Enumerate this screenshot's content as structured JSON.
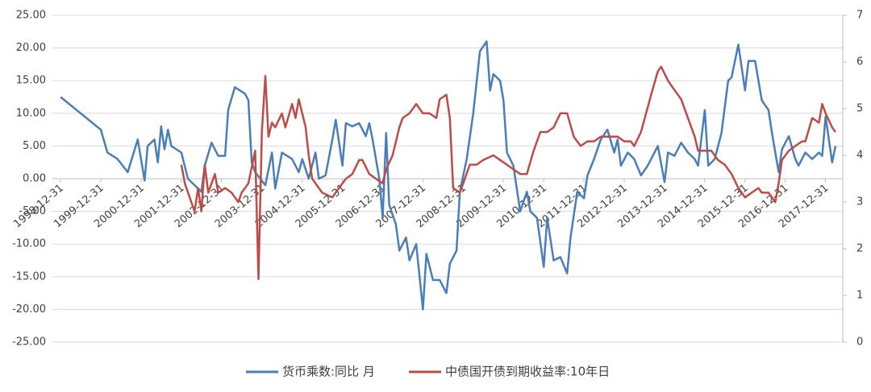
{
  "chart_data": {
    "type": "line",
    "xlim": [
      "1998-12-31",
      "2018-04-30"
    ],
    "xticks": [
      "1998-12-31",
      "1999-12-31",
      "2000-12-31",
      "2001-12-31",
      "2002-12-31",
      "2003-12-31",
      "2004-12-31",
      "2005-12-31",
      "2006-12-31",
      "2007-12-31",
      "2008-12-31",
      "2009-12-31",
      "2010-12-31",
      "2011-12-31",
      "2012-12-31",
      "2013-12-31",
      "2014-12-31",
      "2015-12-31",
      "2016-12-31",
      "2017-12-31"
    ],
    "ylim": [
      -25,
      25
    ],
    "yticks": [
      {
        "value": -25,
        "label": "-25.00"
      },
      {
        "value": -20,
        "label": "-20.00"
      },
      {
        "value": -15,
        "label": "-15.00"
      },
      {
        "value": -10,
        "label": "-10.00"
      },
      {
        "value": -5,
        "label": "-5.00"
      },
      {
        "value": 0,
        "label": "0.00"
      },
      {
        "value": 5,
        "label": "5.00"
      },
      {
        "value": 10,
        "label": "10.00"
      },
      {
        "value": 15,
        "label": "15.00"
      },
      {
        "value": 20,
        "label": "20.00"
      },
      {
        "value": 25,
        "label": "25.00"
      }
    ],
    "y2lim": [
      0,
      7
    ],
    "y2ticks": [
      0,
      1,
      2,
      3,
      4,
      5,
      6,
      7
    ],
    "grid": true,
    "legend": "bottom",
    "series": [
      {
        "name": "货币乘数:同比 月",
        "color": "#4a7ebb",
        "x": [
          "1999-01",
          "2000-01",
          "2000-03",
          "2000-06",
          "2000-09",
          "2000-12",
          "2001-02",
          "2001-03",
          "2001-05",
          "2001-06",
          "2001-07",
          "2001-08",
          "2001-09",
          "2001-10",
          "2002-01",
          "2002-03",
          "2002-05",
          "2002-07",
          "2002-08",
          "2002-10",
          "2002-12",
          "2003-02",
          "2003-03",
          "2003-05",
          "2003-08",
          "2003-09",
          "2003-10",
          "2003-11",
          "2004-02",
          "2004-04",
          "2004-05",
          "2004-07",
          "2004-10",
          "2004-12",
          "2005-01",
          "2005-03",
          "2005-05",
          "2005-06",
          "2005-08",
          "2005-10",
          "2005-11",
          "2006-01",
          "2006-02",
          "2006-04",
          "2006-06",
          "2006-08",
          "2006-09",
          "2006-10",
          "2006-12",
          "2007-01",
          "2007-02",
          "2007-03",
          "2007-05",
          "2007-06",
          "2007-08",
          "2007-09",
          "2007-11",
          "2008-01",
          "2008-02",
          "2008-04",
          "2008-06",
          "2008-08",
          "2008-09",
          "2008-11",
          "2008-12",
          "2009-02",
          "2009-04",
          "2009-06",
          "2009-08",
          "2009-09",
          "2009-10",
          "2009-12",
          "2010-01",
          "2010-02",
          "2010-04",
          "2010-06",
          "2010-08",
          "2010-09",
          "2010-11",
          "2011-01",
          "2011-02",
          "2011-04",
          "2011-06",
          "2011-08",
          "2011-09",
          "2011-11",
          "2012-01",
          "2012-02",
          "2012-04",
          "2012-06",
          "2012-08",
          "2012-10",
          "2012-11",
          "2012-12",
          "2013-02",
          "2013-04",
          "2013-06",
          "2013-08",
          "2013-11",
          "2014-01",
          "2014-02",
          "2014-04",
          "2014-06",
          "2014-08",
          "2014-10",
          "2014-11",
          "2015-01",
          "2015-02",
          "2015-04",
          "2015-06",
          "2015-08",
          "2015-09",
          "2015-11",
          "2016-01",
          "2016-02",
          "2016-04",
          "2016-06",
          "2016-08",
          "2016-09",
          "2016-11",
          "2016-12",
          "2017-02",
          "2017-04",
          "2017-05",
          "2017-07",
          "2017-09",
          "2017-11",
          "2017-12",
          "2018-01",
          "2018-03",
          "2018-04"
        ],
        "values": [
          12.5,
          7.5,
          4,
          3,
          1,
          6,
          -0.3,
          5,
          6,
          2.5,
          8,
          4.5,
          7.5,
          5,
          4,
          0,
          -1,
          -2,
          2,
          5.5,
          3.5,
          3.5,
          10.5,
          14,
          13,
          12,
          2.5,
          1,
          -1,
          4,
          -1.5,
          4,
          3,
          1,
          3,
          0,
          4,
          0,
          0.5,
          6,
          9,
          2,
          8.5,
          8,
          8.5,
          6.5,
          8.5,
          6,
          0,
          -6,
          7,
          -4,
          -7,
          -11,
          -9,
          -12.5,
          -10,
          -20,
          -11.5,
          -15.5,
          -15.5,
          -17.5,
          -13,
          -11,
          -2,
          3,
          10,
          19.5,
          21,
          13.5,
          16,
          15,
          12,
          4,
          2,
          -5,
          -2,
          -5,
          -6,
          -13.5,
          -6,
          -12.5,
          -12,
          -14.5,
          -9,
          -2,
          -3,
          0.5,
          3,
          6,
          7.5,
          4,
          6,
          2,
          4,
          3,
          0.5,
          2,
          5,
          -0.5,
          4,
          3.5,
          5.5,
          4,
          3,
          2,
          10.5,
          2,
          3,
          7,
          15,
          15.5,
          20.5,
          13.5,
          18,
          18,
          12,
          10.5,
          7,
          1,
          4.5,
          6.5,
          3,
          2,
          4,
          3,
          4,
          3.5,
          9.5,
          2.5,
          5
        ]
      },
      {
        "name": "中债国开债到期收益率:10年日",
        "color": "#be4b48",
        "axis": "y2",
        "x": [
          "2002-01",
          "2002-02",
          "2002-04",
          "2002-05",
          "2002-06",
          "2002-07",
          "2002-08",
          "2002-09",
          "2002-11",
          "2002-12",
          "2003-02",
          "2003-04",
          "2003-06",
          "2003-07",
          "2003-09",
          "2003-11",
          "2003-12",
          "2004-01",
          "2004-02",
          "2004-03",
          "2004-04",
          "2004-05",
          "2004-07",
          "2004-08",
          "2004-10",
          "2004-11",
          "2004-12",
          "2005-02",
          "2005-03",
          "2005-04",
          "2005-06",
          "2005-07",
          "2005-10",
          "2005-12",
          "2006-02",
          "2006-04",
          "2006-06",
          "2006-07",
          "2006-09",
          "2006-11",
          "2007-01",
          "2007-02",
          "2007-04",
          "2007-06",
          "2007-07",
          "2007-09",
          "2007-11",
          "2008-01",
          "2008-03",
          "2008-05",
          "2008-06",
          "2008-08",
          "2008-09",
          "2008-10",
          "2008-12",
          "2009-01",
          "2009-03",
          "2009-05",
          "2009-07",
          "2009-10",
          "2009-12",
          "2010-02",
          "2010-04",
          "2010-06",
          "2010-08",
          "2010-10",
          "2010-12",
          "2011-02",
          "2011-04",
          "2011-06",
          "2011-08",
          "2011-10",
          "2011-12",
          "2012-02",
          "2012-04",
          "2012-06",
          "2012-09",
          "2012-11",
          "2013-01",
          "2013-03",
          "2013-04",
          "2013-06",
          "2013-09",
          "2013-11",
          "2013-12",
          "2014-02",
          "2014-04",
          "2014-06",
          "2014-08",
          "2014-10",
          "2014-11",
          "2015-01",
          "2015-03",
          "2015-05",
          "2015-07",
          "2015-09",
          "2015-11",
          "2016-01",
          "2016-03",
          "2016-05",
          "2016-06",
          "2016-08",
          "2016-10",
          "2016-11",
          "2016-12",
          "2017-02",
          "2017-04",
          "2017-06",
          "2017-07",
          "2017-09",
          "2017-11",
          "2017-12",
          "2018-01",
          "2018-03",
          "2018-04"
        ],
        "values": [
          3.8,
          3.4,
          3.0,
          2.8,
          3.3,
          2.8,
          3.8,
          3.2,
          3.6,
          3.2,
          3.3,
          3.2,
          3.0,
          3.2,
          3.4,
          4.1,
          1.35,
          4.5,
          5.7,
          4.4,
          4.7,
          4.6,
          4.9,
          4.6,
          5.1,
          4.8,
          5.2,
          4.6,
          4.0,
          3.5,
          3.3,
          3.2,
          3.1,
          3.3,
          3.5,
          3.6,
          3.9,
          3.9,
          3.6,
          3.5,
          3.4,
          3.7,
          4.0,
          4.6,
          4.8,
          4.9,
          5.1,
          4.9,
          4.9,
          4.8,
          5.2,
          5.3,
          4.8,
          3.3,
          3.2,
          3.4,
          3.8,
          3.8,
          3.9,
          4.0,
          3.9,
          3.8,
          3.7,
          3.6,
          3.6,
          4.1,
          4.5,
          4.5,
          4.6,
          4.9,
          4.9,
          4.4,
          4.2,
          4.3,
          4.3,
          4.4,
          4.4,
          4.4,
          4.3,
          4.3,
          4.2,
          4.5,
          5.3,
          5.8,
          5.9,
          5.6,
          5.4,
          5.2,
          4.8,
          4.4,
          4.1,
          4.1,
          4.1,
          3.9,
          3.8,
          3.6,
          3.3,
          3.1,
          3.2,
          3.3,
          3.2,
          3.2,
          3.0,
          3.4,
          3.9,
          4.1,
          4.2,
          4.3,
          4.3,
          4.8,
          4.7,
          5.1,
          4.9,
          4.6,
          4.5
        ]
      }
    ]
  }
}
